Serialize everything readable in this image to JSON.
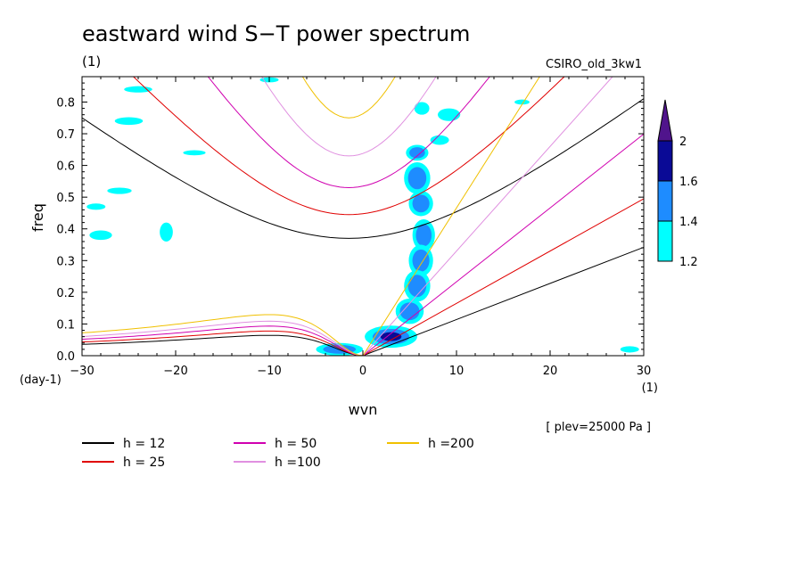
{
  "chart_data": {
    "type": "heatmap",
    "title": "eastward wind S−T power spectrum",
    "subtitle_left": "(1)",
    "subtitle_right": "CSIRO_old_3kw1",
    "xlabel": "wvn",
    "ylabel": "freq",
    "x_unit": "(1)",
    "y_unit": "(day-1)",
    "note": "[ plev=25000 Pa ]",
    "xlim": [
      -30,
      30
    ],
    "ylim": [
      0,
      0.88
    ],
    "x_ticks": [
      -30,
      -20,
      -10,
      0,
      10,
      20,
      30
    ],
    "y_ticks": [
      0.0,
      0.1,
      0.2,
      0.3,
      0.4,
      0.5,
      0.6,
      0.7,
      0.8
    ],
    "x_tick_labels": [
      "−30",
      "−20",
      "−10",
      "0",
      "10",
      "20",
      "30"
    ],
    "y_tick_labels": [
      "0.0",
      "0.1",
      "0.2",
      "0.3",
      "0.4",
      "0.5",
      "0.6",
      "0.7",
      "0.8"
    ],
    "colorbar": {
      "levels": [
        "1.2",
        "1.4",
        "1.6",
        "2"
      ],
      "colors": [
        "#00ffff",
        "#1e8cff",
        "#0a0a96",
        "#50148c"
      ]
    },
    "legend": [
      {
        "label": "h = 12",
        "color": "#000000"
      },
      {
        "label": "h = 25",
        "color": "#e00000"
      },
      {
        "label": "h = 50",
        "color": "#d000b0"
      },
      {
        "label": "h =100",
        "color": "#e090e0"
      },
      {
        "label": "h =200",
        "color": "#f0c000"
      }
    ],
    "dispersion_curves": [
      {
        "h": 12,
        "color": "#000000",
        "kelvin_slope": 0.0114,
        "ig_min_freq": 0.37,
        "ig_slope": 0.0229,
        "rossby_max_freq": 0.062
      },
      {
        "h": 25,
        "color": "#e00000",
        "kelvin_slope": 0.0165,
        "ig_min_freq": 0.445,
        "ig_slope": 0.033,
        "rossby_max_freq": 0.075
      },
      {
        "h": 50,
        "color": "#d000b0",
        "kelvin_slope": 0.0233,
        "ig_min_freq": 0.53,
        "ig_slope": 0.0467,
        "rossby_max_freq": 0.09
      },
      {
        "h": 100,
        "color": "#e090e0",
        "kelvin_slope": 0.033,
        "ig_min_freq": 0.63,
        "ig_slope": 0.066,
        "rossby_max_freq": 0.105
      },
      {
        "h": 200,
        "color": "#f0c000",
        "kelvin_slope": 0.0466,
        "ig_min_freq": 0.75,
        "ig_slope": 0.093,
        "rossby_max_freq": 0.125
      }
    ],
    "power_blobs": [
      {
        "x": 5.8,
        "y": 0.64,
        "rx": 1.2,
        "ry": 0.025,
        "level": 2
      },
      {
        "x": 5.8,
        "y": 0.56,
        "rx": 1.4,
        "ry": 0.05,
        "level": 2
      },
      {
        "x": 6.2,
        "y": 0.48,
        "rx": 1.3,
        "ry": 0.04,
        "level": 2
      },
      {
        "x": 6.5,
        "y": 0.38,
        "rx": 1.2,
        "ry": 0.05,
        "level": 2
      },
      {
        "x": 6.2,
        "y": 0.3,
        "rx": 1.3,
        "ry": 0.05,
        "level": 2
      },
      {
        "x": 5.8,
        "y": 0.22,
        "rx": 1.4,
        "ry": 0.05,
        "level": 2
      },
      {
        "x": 5.0,
        "y": 0.14,
        "rx": 1.5,
        "ry": 0.04,
        "level": 2
      },
      {
        "x": 3.0,
        "y": 0.06,
        "rx": 2.8,
        "ry": 0.035,
        "level": 3
      },
      {
        "x": -2.5,
        "y": 0.02,
        "rx": 2.5,
        "ry": 0.02,
        "level": 2
      },
      {
        "x": 6.3,
        "y": 0.78,
        "rx": 0.8,
        "ry": 0.02,
        "level": 1
      },
      {
        "x": 9.2,
        "y": 0.76,
        "rx": 1.2,
        "ry": 0.02,
        "level": 1
      },
      {
        "x": 8.2,
        "y": 0.68,
        "rx": 1.0,
        "ry": 0.015,
        "level": 1
      },
      {
        "x": -25.0,
        "y": 0.74,
        "rx": 1.5,
        "ry": 0.012,
        "level": 1
      },
      {
        "x": -18.0,
        "y": 0.64,
        "rx": 1.2,
        "ry": 0.008,
        "level": 1
      },
      {
        "x": -26.0,
        "y": 0.52,
        "rx": 1.3,
        "ry": 0.01,
        "level": 1
      },
      {
        "x": -21.0,
        "y": 0.39,
        "rx": 0.7,
        "ry": 0.03,
        "level": 1
      },
      {
        "x": -28.0,
        "y": 0.38,
        "rx": 1.2,
        "ry": 0.015,
        "level": 1
      },
      {
        "x": -28.5,
        "y": 0.47,
        "rx": 1.0,
        "ry": 0.01,
        "level": 1
      },
      {
        "x": -24.0,
        "y": 0.84,
        "rx": 1.5,
        "ry": 0.01,
        "level": 1
      },
      {
        "x": -10.0,
        "y": 0.87,
        "rx": 1.0,
        "ry": 0.008,
        "level": 1
      },
      {
        "x": 17.0,
        "y": 0.8,
        "rx": 0.8,
        "ry": 0.008,
        "level": 1
      },
      {
        "x": 28.5,
        "y": 0.02,
        "rx": 1.0,
        "ry": 0.01,
        "level": 1
      }
    ]
  }
}
